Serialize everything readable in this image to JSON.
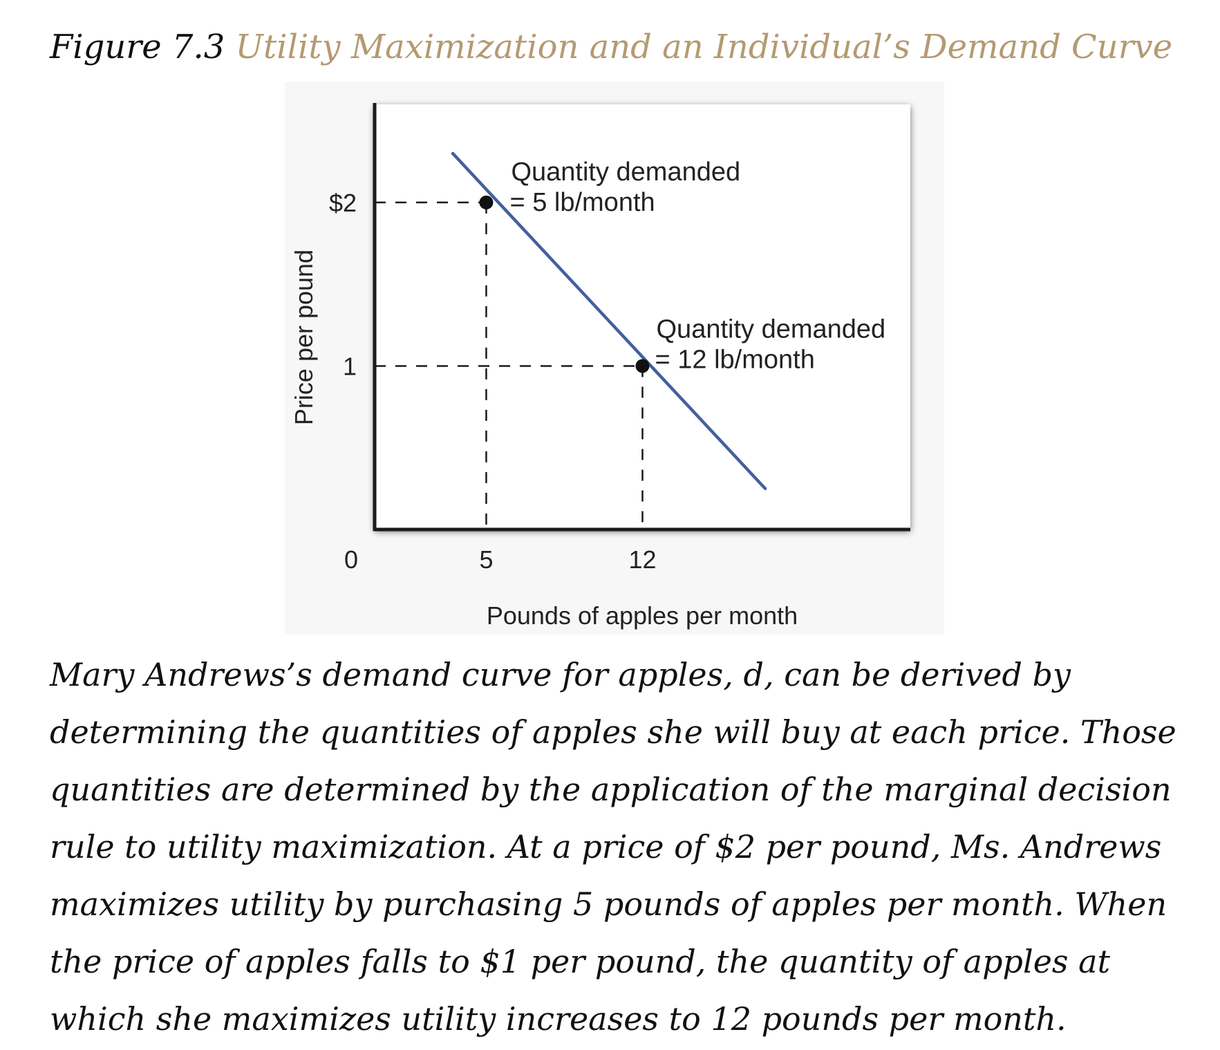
{
  "figure": {
    "number": "Figure 7.3",
    "title": "Utility Maximization and an Individual’s Demand Curve"
  },
  "chart_data": {
    "type": "line",
    "xlabel": "Pounds of apples per month",
    "ylabel": "Price per pound",
    "x_ticks": [
      "0",
      "5",
      "12"
    ],
    "y_ticks": [
      "$2",
      "1"
    ],
    "xlim": [
      0,
      24
    ],
    "ylim": [
      0,
      2.6
    ],
    "grid": false,
    "series": [
      {
        "values": [
          [
            3.5,
            2.3
          ],
          [
            17.5,
            0.25
          ]
        ],
        "color": "#41609e"
      }
    ],
    "points": [
      {
        "x": 5,
        "y": 2,
        "label_line1": "Quantity demanded",
        "label_line2": "= 5 lb/month"
      },
      {
        "x": 12,
        "y": 1,
        "label_line1": "Quantity demanded",
        "label_line2": "= 12 lb/month"
      }
    ]
  },
  "caption": "Mary Andrews’s demand curve for apples, d, can be derived by determining the quantities of apples she will buy at each price. Those quantities are determined by the application of the marginal decision rule to utility maximization. At a price of $2 per pound, Ms. Andrews maximizes utility by purchasing 5 pounds of apples per month. When the price of apples falls to $1 per pound, the quantity of apples at which she maximizes utility increases to 12 pounds per month."
}
